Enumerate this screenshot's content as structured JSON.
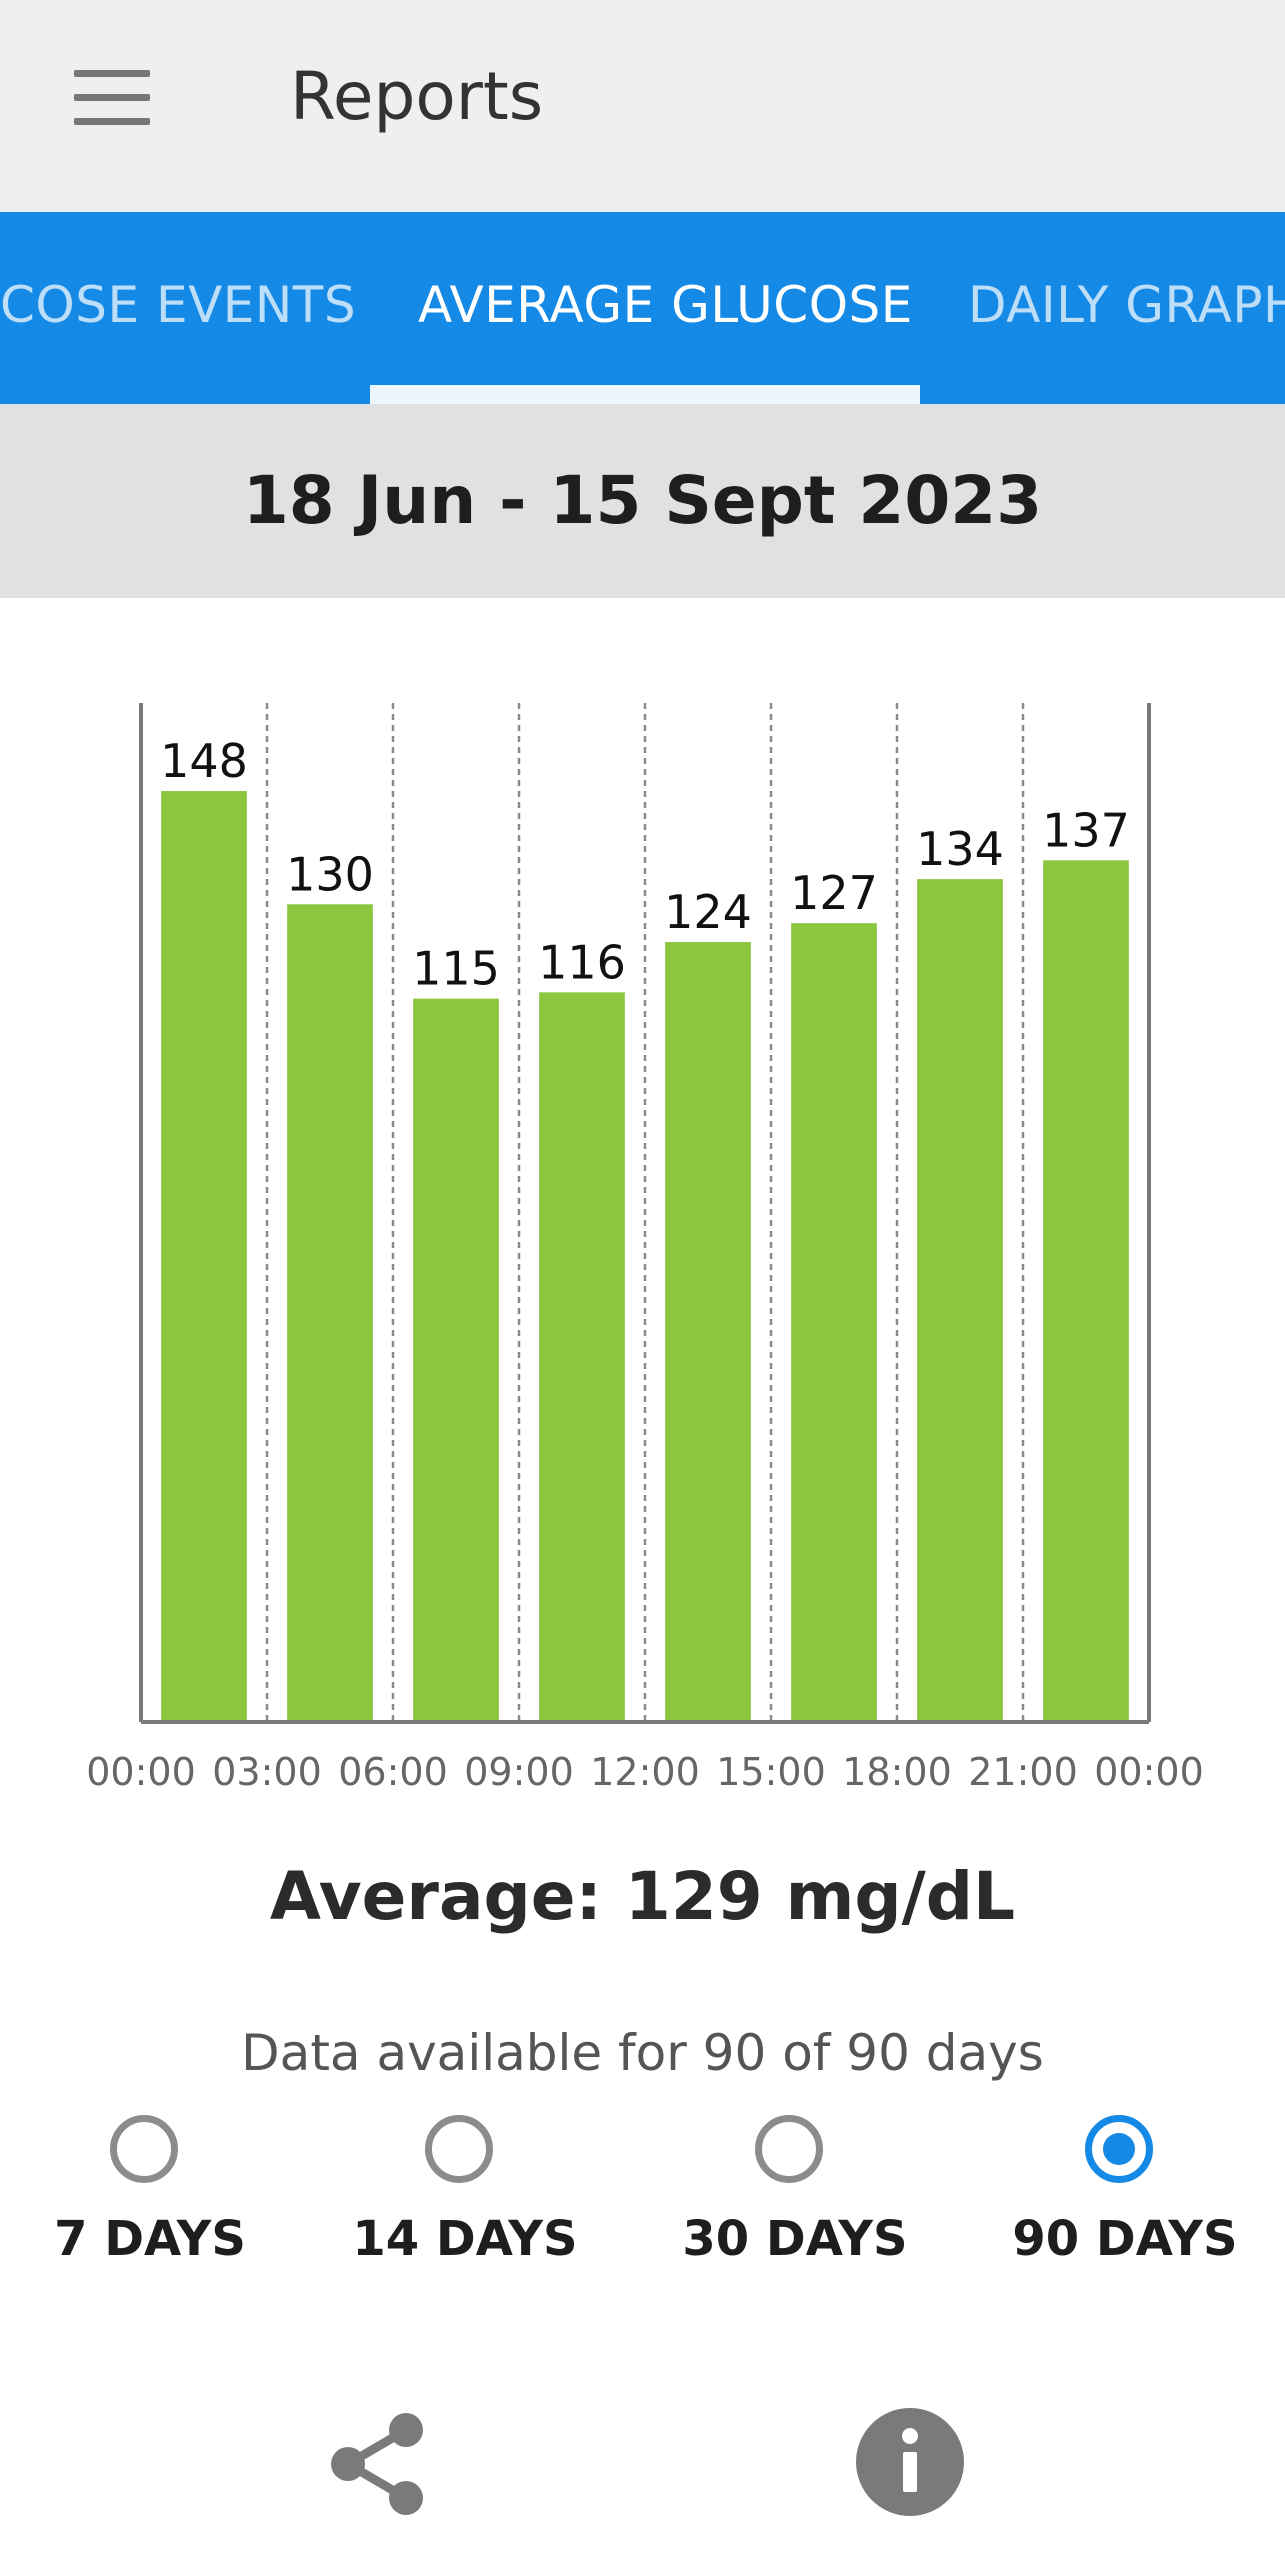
{
  "appbar": {
    "title": "Reports",
    "menu_icon": "menu-icon"
  },
  "tabs": [
    {
      "label": "COSE EVENTS",
      "active": false
    },
    {
      "label": "AVERAGE GLUCOSE",
      "active": true
    },
    {
      "label": "DAILY GRAPH",
      "active": false
    }
  ],
  "date_range": "18 Jun - 15 Sept 2023",
  "chart_data": {
    "type": "bar",
    "x_ticks": [
      "00:00",
      "03:00",
      "06:00",
      "09:00",
      "12:00",
      "15:00",
      "18:00",
      "21:00",
      "00:00"
    ],
    "values": [
      148,
      130,
      115,
      116,
      124,
      127,
      134,
      137
    ],
    "ylim": [
      0,
      162
    ],
    "bar_color": "#8dc63f",
    "grid": "dashed vertical"
  },
  "average_text": "Average: 129 mg/dL",
  "availability_text": "Data available for 90 of 90 days",
  "range_options": [
    {
      "label": "7 DAYS",
      "selected": false
    },
    {
      "label": "14 DAYS",
      "selected": false
    },
    {
      "label": "30 DAYS",
      "selected": false
    },
    {
      "label": "90 DAYS",
      "selected": true
    }
  ],
  "bottom_actions": {
    "share_icon": "share-icon",
    "info_icon": "info-icon"
  },
  "colors": {
    "accent": "#1589e6",
    "bar": "#8dc63f",
    "appbar": "#efefef",
    "date_band": "#e1e1e1"
  }
}
